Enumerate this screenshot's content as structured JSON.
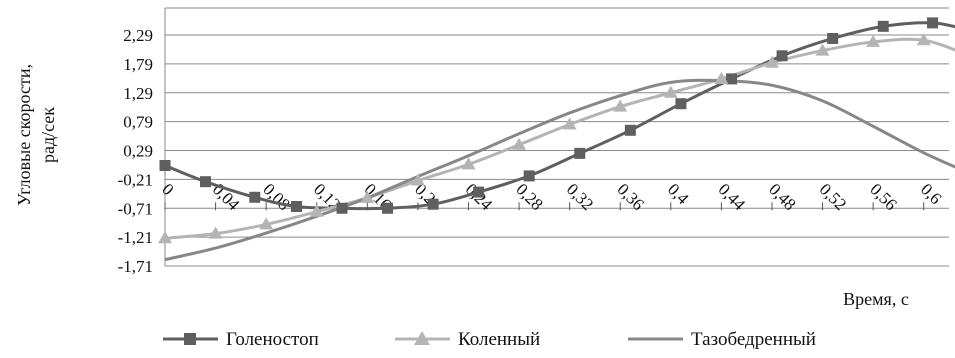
{
  "chart_data": {
    "type": "line",
    "title": "",
    "xlabel": "Время, с",
    "ylabel": "Угловые скорости, рад/сек",
    "x": [
      0,
      0.04,
      0.08,
      0.12,
      0.16,
      0.2,
      0.24,
      0.28,
      0.32,
      0.36,
      0.4,
      0.44,
      0.48,
      0.52,
      0.56,
      0.6
    ],
    "x_tick_labels": [
      "0",
      "0,04",
      "0,08",
      "0,12",
      "0,16",
      "0,2",
      "0,24",
      "0,28",
      "0,32",
      "0,36",
      "0,4",
      "0,44",
      "0,48",
      "0,52",
      "0,56",
      "0,6"
    ],
    "y_tick_values": [
      2.29,
      1.79,
      1.29,
      0.79,
      0.29,
      -0.21,
      -0.71,
      -1.21,
      -1.71
    ],
    "y_tick_labels": [
      "2,29",
      "1,79",
      "1,29",
      "0,79",
      "0,29",
      "-0,21",
      "-0,71",
      "-1,21",
      "-1,71"
    ],
    "xlim": [
      0,
      0.62
    ],
    "ylim": [
      -1.71,
      2.6
    ],
    "grid": "horizontal",
    "legend_position": "bottom",
    "series": [
      {
        "name": "Голеностоп",
        "color": "#5f5f5f",
        "marker": "square",
        "x": [
          0,
          0.032,
          0.071,
          0.104,
          0.14,
          0.176,
          0.212,
          0.248,
          0.288,
          0.328,
          0.368,
          0.408,
          0.448,
          0.488,
          0.528,
          0.568,
          0.607,
          0.636
        ],
        "values": [
          0.03,
          -0.25,
          -0.52,
          -0.68,
          -0.71,
          -0.71,
          -0.64,
          -0.43,
          -0.15,
          0.24,
          0.64,
          1.1,
          1.53,
          1.93,
          2.23,
          2.44,
          2.5,
          2.37
        ]
      },
      {
        "name": "Коленный",
        "color": "#b4b4b4",
        "marker": "triangle",
        "x": [
          0,
          0.04,
          0.08,
          0.12,
          0.16,
          0.2,
          0.24,
          0.28,
          0.32,
          0.36,
          0.4,
          0.44,
          0.48,
          0.52,
          0.56,
          0.6,
          0.636
        ],
        "values": [
          -1.23,
          -1.15,
          -0.99,
          -0.77,
          -0.53,
          -0.23,
          0.05,
          0.39,
          0.74,
          1.05,
          1.29,
          1.53,
          1.81,
          2.02,
          2.17,
          2.2,
          1.93
        ]
      },
      {
        "name": "Тазобедренный",
        "color": "#878787",
        "marker": "none",
        "x": [
          0,
          0.04,
          0.08,
          0.12,
          0.16,
          0.2,
          0.24,
          0.28,
          0.32,
          0.36,
          0.4,
          0.44,
          0.48,
          0.52,
          0.56,
          0.6,
          0.636
        ],
        "values": [
          -1.6,
          -1.4,
          -1.14,
          -0.85,
          -0.53,
          -0.16,
          0.2,
          0.58,
          0.94,
          1.24,
          1.47,
          1.5,
          1.42,
          1.15,
          0.71,
          0.25,
          -0.1
        ]
      }
    ]
  }
}
